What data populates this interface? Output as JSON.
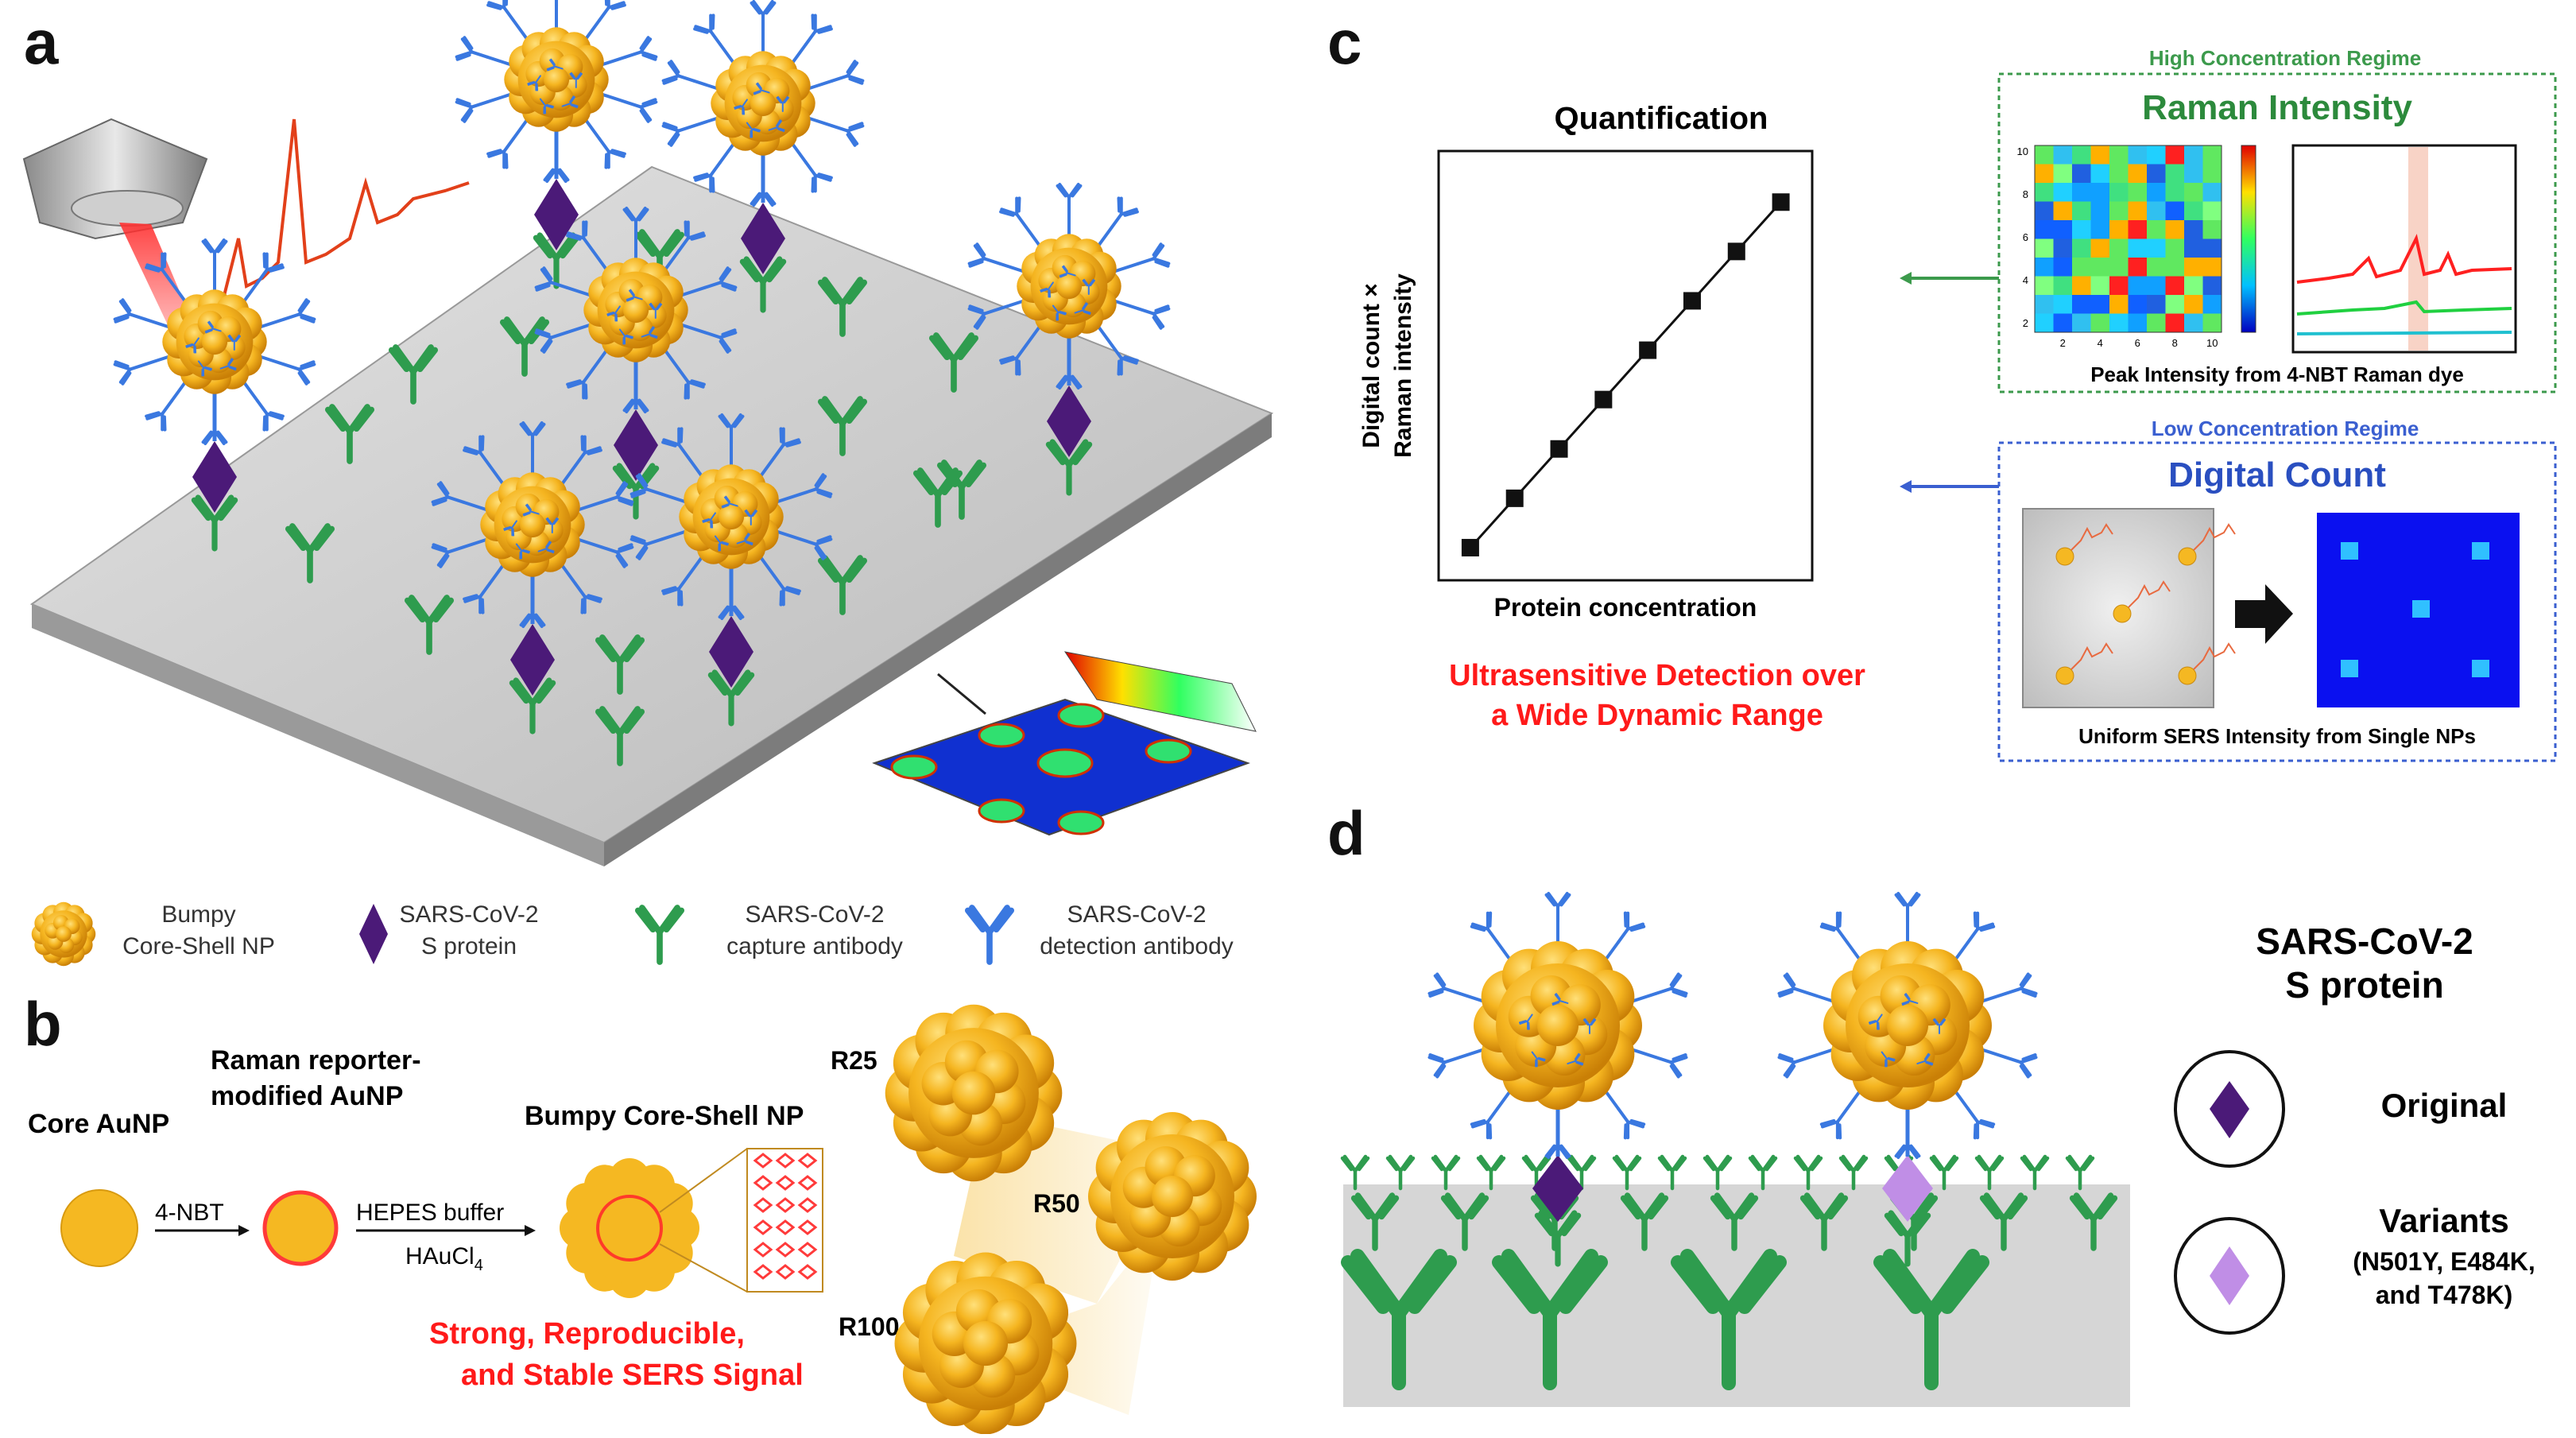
{
  "panels": {
    "a": "a",
    "b": "b",
    "c": "c",
    "d": "d"
  },
  "panel_a": {
    "legend": [
      {
        "line1": "Bumpy",
        "line2": "Core-Shell NP"
      },
      {
        "line1": "SARS-CoV-2",
        "line2": "S protein"
      },
      {
        "line1": "SARS-CoV-2",
        "line2": "capture antibody"
      },
      {
        "line1": "SARS-CoV-2",
        "line2": "detection antibody"
      }
    ]
  },
  "panel_b": {
    "core_label": "Core AuNP",
    "reporter_label_1": "Raman reporter-",
    "reporter_label_2": "modified AuNP",
    "bumpy_label": "Bumpy  Core-Shell NP",
    "step1": "4-NBT",
    "step2a": "HEPES buffer",
    "step2b": "HAuCl",
    "step2b_sub": "4",
    "signal_1": "Strong, Reproducible,",
    "signal_2": "and Stable SERS Signal",
    "sizes": [
      "R25",
      "R50",
      "R100"
    ]
  },
  "panel_c": {
    "plot_title": "Quantification",
    "ylabel_1": "Digital count ×",
    "ylabel_2": "Raman intensity",
    "xlabel": "Protein concentration",
    "claim_1": "Ultrasensitive Detection over",
    "claim_2": "a Wide Dynamic Range",
    "high_regime": "High Concentration Regime",
    "raman_title": "Raman Intensity",
    "raman_caption": "Peak Intensity from 4-NBT Raman dye",
    "low_regime": "Low Concentration Regime",
    "digital_title": "Digital Count",
    "digital_caption": "Uniform SERS Intensity from Single NPs",
    "heatmap_yticks": [
      "10",
      "8",
      "6",
      "4",
      "2"
    ],
    "heatmap_xticks": [
      "2",
      "4",
      "6",
      "8",
      "10"
    ]
  },
  "panel_d": {
    "legend_title_1": "SARS-CoV-2",
    "legend_title_2": "S protein",
    "original": "Original",
    "variants": "Variants",
    "variants_detail_1": "(N501Y, E484K,",
    "variants_detail_2": "and T478K)"
  },
  "colors": {
    "gold": "#f2b01a",
    "gold_dark": "#d98f0a",
    "capture_antibody": "#2e9c4e",
    "detection_antibody": "#3a78e0",
    "spike": "#4b1a78",
    "variant_spike": "#c08ee6",
    "red": "#ff1a1a",
    "green_box": "#3c9a4c",
    "blue_box": "#3a5fd0",
    "surface": "#c9c9c9"
  },
  "chart_data": {
    "type": "scatter",
    "title": "Quantification",
    "xlabel": "Protein concentration",
    "ylabel": "Digital count × Raman intensity",
    "x": [
      1,
      2,
      3,
      4,
      5,
      6,
      7,
      8
    ],
    "y": [
      1,
      2,
      3,
      4,
      5,
      6,
      7,
      8
    ],
    "grid": false
  }
}
